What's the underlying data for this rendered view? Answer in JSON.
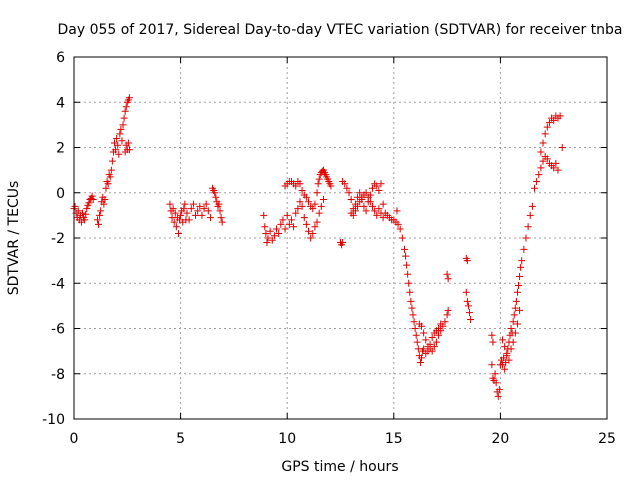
{
  "chart_data": {
    "type": "scatter",
    "title": "Day 055 of 2017, Sidereal Day-to-day VTEC variation (SDTVAR) for receiver tnba",
    "xlabel": "GPS time / hours",
    "ylabel": "SDTVAR / TECUs",
    "xlim": [
      0,
      25
    ],
    "ylim": [
      -10,
      6
    ],
    "xticks": [
      0,
      5,
      10,
      15,
      20,
      25
    ],
    "yticks": [
      -10,
      -8,
      -6,
      -4,
      -2,
      0,
      2,
      4,
      6
    ],
    "grid": true,
    "marker": "+",
    "marker_color": "#e00000",
    "series": [
      {
        "name": "SDTVAR",
        "points": [
          [
            0.0,
            -0.7
          ],
          [
            0.05,
            -0.6
          ],
          [
            0.1,
            -0.9
          ],
          [
            0.15,
            -1.1
          ],
          [
            0.2,
            -0.8
          ],
          [
            0.25,
            -1.2
          ],
          [
            0.3,
            -1.0
          ],
          [
            0.35,
            -1.3
          ],
          [
            0.4,
            -0.9
          ],
          [
            0.45,
            -1.1
          ],
          [
            0.5,
            -1.2
          ],
          [
            0.55,
            -0.95
          ],
          [
            0.6,
            -0.7
          ],
          [
            0.65,
            -0.55
          ],
          [
            0.7,
            -0.45
          ],
          [
            0.75,
            -0.3
          ],
          [
            0.8,
            -0.25
          ],
          [
            0.85,
            -0.15
          ],
          [
            0.9,
            -0.3
          ],
          [
            1.1,
            -1.2
          ],
          [
            1.15,
            -1.4
          ],
          [
            1.2,
            -1.0
          ],
          [
            1.25,
            -0.8
          ],
          [
            1.3,
            -0.4
          ],
          [
            1.35,
            -0.2
          ],
          [
            1.4,
            -0.5
          ],
          [
            1.45,
            -0.3
          ],
          [
            1.5,
            0.2
          ],
          [
            1.55,
            0.5
          ],
          [
            1.6,
            0.4
          ],
          [
            1.65,
            0.8
          ],
          [
            1.7,
            0.7
          ],
          [
            1.75,
            1.0
          ],
          [
            1.8,
            1.4
          ],
          [
            1.85,
            1.8
          ],
          [
            1.9,
            2.2
          ],
          [
            1.95,
            1.9
          ],
          [
            2.0,
            2.4
          ],
          [
            2.05,
            2.1
          ],
          [
            2.1,
            1.7
          ],
          [
            2.15,
            2.6
          ],
          [
            2.2,
            2.8
          ],
          [
            2.25,
            2.3
          ],
          [
            2.3,
            3.0
          ],
          [
            2.35,
            3.3
          ],
          [
            2.4,
            3.6
          ],
          [
            2.45,
            3.8
          ],
          [
            2.5,
            4.0
          ],
          [
            2.55,
            4.1
          ],
          [
            2.6,
            4.2
          ],
          [
            2.4,
            1.8
          ],
          [
            2.45,
            2.1
          ],
          [
            2.5,
            1.9
          ],
          [
            2.55,
            2.2
          ],
          [
            2.6,
            1.9
          ],
          [
            4.5,
            -0.5
          ],
          [
            4.55,
            -0.8
          ],
          [
            4.6,
            -1.1
          ],
          [
            4.65,
            -0.7
          ],
          [
            4.7,
            -1.3
          ],
          [
            4.75,
            -0.9
          ],
          [
            4.8,
            -1.5
          ],
          [
            4.85,
            -1.1
          ],
          [
            4.9,
            -1.8
          ],
          [
            4.95,
            -1.2
          ],
          [
            5.0,
            -1.0
          ],
          [
            5.05,
            -0.8
          ],
          [
            5.1,
            -1.3
          ],
          [
            5.15,
            -0.7
          ],
          [
            5.2,
            -0.5
          ],
          [
            5.25,
            -1.2
          ],
          [
            5.3,
            -0.9
          ],
          [
            5.4,
            -1.2
          ],
          [
            5.5,
            -0.7
          ],
          [
            5.6,
            -0.5
          ],
          [
            5.7,
            -1.0
          ],
          [
            5.8,
            -0.8
          ],
          [
            5.9,
            -0.6
          ],
          [
            6.0,
            -1.0
          ],
          [
            6.1,
            -0.7
          ],
          [
            6.2,
            -0.5
          ],
          [
            6.3,
            -0.8
          ],
          [
            6.4,
            -1.1
          ],
          [
            6.5,
            0.2
          ],
          [
            6.55,
            0.1
          ],
          [
            6.6,
            0.0
          ],
          [
            6.65,
            -0.2
          ],
          [
            6.7,
            -0.4
          ],
          [
            6.75,
            -0.6
          ],
          [
            6.8,
            -0.5
          ],
          [
            6.85,
            -0.8
          ],
          [
            6.9,
            -1.1
          ],
          [
            6.95,
            -1.3
          ],
          [
            8.9,
            -1.0
          ],
          [
            8.95,
            -1.5
          ],
          [
            9.0,
            -1.8
          ],
          [
            9.05,
            -2.2
          ],
          [
            9.1,
            -2.0
          ],
          [
            9.2,
            -1.7
          ],
          [
            9.3,
            -2.1
          ],
          [
            9.4,
            -1.9
          ],
          [
            9.5,
            -1.6
          ],
          [
            9.6,
            -1.8
          ],
          [
            9.7,
            -1.4
          ],
          [
            9.8,
            -1.2
          ],
          [
            9.9,
            -1.6
          ],
          [
            10.0,
            -1.0
          ],
          [
            10.1,
            -1.4
          ],
          [
            10.2,
            -1.2
          ],
          [
            10.3,
            -1.5
          ],
          [
            10.4,
            -0.9
          ],
          [
            10.5,
            -0.7
          ],
          [
            10.6,
            -0.4
          ],
          [
            10.7,
            -0.6
          ],
          [
            10.8,
            -1.1
          ],
          [
            10.9,
            -1.4
          ],
          [
            11.0,
            -1.7
          ],
          [
            11.1,
            -2.0
          ],
          [
            11.2,
            -1.8
          ],
          [
            11.3,
            -1.5
          ],
          [
            11.4,
            -1.3
          ],
          [
            11.5,
            -0.9
          ],
          [
            11.6,
            -0.6
          ],
          [
            11.7,
            -0.3
          ],
          [
            9.9,
            0.3
          ],
          [
            10.0,
            0.4
          ],
          [
            10.1,
            0.5
          ],
          [
            10.2,
            0.5
          ],
          [
            10.3,
            0.4
          ],
          [
            10.4,
            0.3
          ],
          [
            10.5,
            0.5
          ],
          [
            10.6,
            0.4
          ],
          [
            10.7,
            0.1
          ],
          [
            10.8,
            -0.1
          ],
          [
            10.9,
            -0.2
          ],
          [
            11.0,
            -0.4
          ],
          [
            11.1,
            -0.6
          ],
          [
            11.2,
            -0.7
          ],
          [
            11.3,
            -0.5
          ],
          [
            11.4,
            0.0
          ],
          [
            11.45,
            0.4
          ],
          [
            11.5,
            0.6
          ],
          [
            11.55,
            0.8
          ],
          [
            11.6,
            0.9
          ],
          [
            11.65,
            0.95
          ],
          [
            11.7,
            1.0
          ],
          [
            11.75,
            0.9
          ],
          [
            11.8,
            0.8
          ],
          [
            11.85,
            0.7
          ],
          [
            11.9,
            0.6
          ],
          [
            11.95,
            0.5
          ],
          [
            12.0,
            0.4
          ],
          [
            12.05,
            0.3
          ],
          [
            12.5,
            -2.2
          ],
          [
            12.55,
            -2.3
          ],
          [
            12.6,
            -2.2
          ],
          [
            12.6,
            0.5
          ],
          [
            12.7,
            0.4
          ],
          [
            12.8,
            0.2
          ],
          [
            12.9,
            0.0
          ],
          [
            13.0,
            -0.3
          ],
          [
            13.1,
            -0.7
          ],
          [
            13.2,
            -0.5
          ],
          [
            13.3,
            -0.2
          ],
          [
            13.4,
            0.0
          ],
          [
            13.5,
            -0.3
          ],
          [
            13.6,
            -0.6
          ],
          [
            13.7,
            -0.8
          ],
          [
            13.8,
            -0.4
          ],
          [
            13.9,
            -0.1
          ],
          [
            14.0,
            0.2
          ],
          [
            14.1,
            0.4
          ],
          [
            14.2,
            0.3
          ],
          [
            14.3,
            0.1
          ],
          [
            14.4,
            0.4
          ],
          [
            14.5,
            -0.5
          ],
          [
            13.0,
            -0.9
          ],
          [
            13.1,
            -1.0
          ],
          [
            13.2,
            -0.8
          ],
          [
            13.3,
            -0.6
          ],
          [
            13.4,
            -0.4
          ],
          [
            13.5,
            -0.2
          ],
          [
            13.6,
            -0.1
          ],
          [
            13.7,
            0.0
          ],
          [
            13.8,
            -0.2
          ],
          [
            13.9,
            -0.4
          ],
          [
            14.0,
            -0.6
          ],
          [
            14.1,
            -0.8
          ],
          [
            14.2,
            -1.0
          ],
          [
            14.3,
            -0.7
          ],
          [
            14.4,
            -0.9
          ],
          [
            14.5,
            -1.1
          ],
          [
            14.6,
            -0.9
          ],
          [
            14.7,
            -1.0
          ],
          [
            14.8,
            -1.1
          ],
          [
            14.9,
            -1.2
          ],
          [
            15.0,
            -1.2
          ],
          [
            15.1,
            -1.3
          ],
          [
            15.15,
            -0.8
          ],
          [
            15.2,
            -1.4
          ],
          [
            15.3,
            -1.6
          ],
          [
            15.4,
            -2.0
          ],
          [
            15.5,
            -2.5
          ],
          [
            15.55,
            -2.8
          ],
          [
            15.6,
            -3.2
          ],
          [
            15.65,
            -3.6
          ],
          [
            15.7,
            -4.0
          ],
          [
            15.75,
            -4.4
          ],
          [
            15.8,
            -4.8
          ],
          [
            15.85,
            -5.1
          ],
          [
            15.9,
            -5.4
          ],
          [
            15.95,
            -5.7
          ],
          [
            16.0,
            -6.0
          ],
          [
            16.05,
            -6.3
          ],
          [
            16.1,
            -6.6
          ],
          [
            16.15,
            -6.9
          ],
          [
            16.2,
            -7.2
          ],
          [
            16.25,
            -7.5
          ],
          [
            16.3,
            -7.3
          ],
          [
            16.35,
            -7.0
          ],
          [
            16.2,
            -5.8
          ],
          [
            16.3,
            -5.9
          ],
          [
            16.4,
            -6.2
          ],
          [
            16.5,
            -6.5
          ],
          [
            16.6,
            -6.8
          ],
          [
            16.7,
            -6.9
          ],
          [
            16.8,
            -7.0
          ],
          [
            16.9,
            -6.8
          ],
          [
            17.0,
            -6.6
          ],
          [
            17.1,
            -6.3
          ],
          [
            17.2,
            -6.1
          ],
          [
            17.3,
            -5.9
          ],
          [
            17.4,
            -5.7
          ],
          [
            17.5,
            -5.4
          ],
          [
            17.55,
            -5.2
          ],
          [
            16.4,
            -6.9
          ],
          [
            16.5,
            -7.1
          ],
          [
            16.6,
            -7.0
          ],
          [
            16.7,
            -6.7
          ],
          [
            16.8,
            -6.4
          ],
          [
            16.9,
            -6.2
          ],
          [
            17.0,
            -6.1
          ],
          [
            17.1,
            -6.0
          ],
          [
            17.2,
            -5.8
          ],
          [
            17.5,
            -3.6
          ],
          [
            17.55,
            -3.8
          ],
          [
            18.4,
            -4.4
          ],
          [
            18.45,
            -4.8
          ],
          [
            18.5,
            -5.0
          ],
          [
            18.55,
            -5.3
          ],
          [
            18.6,
            -5.6
          ],
          [
            18.4,
            -2.9
          ],
          [
            18.45,
            -3.0
          ],
          [
            19.6,
            -6.3
          ],
          [
            19.65,
            -6.6
          ],
          [
            19.6,
            -7.6
          ],
          [
            19.65,
            -8.2
          ],
          [
            19.7,
            -8.3
          ],
          [
            19.75,
            -8.0
          ],
          [
            19.8,
            -8.4
          ],
          [
            19.85,
            -8.8
          ],
          [
            19.9,
            -9.0
          ],
          [
            19.95,
            -8.7
          ],
          [
            20.0,
            -7.6
          ],
          [
            20.05,
            -7.4
          ],
          [
            20.1,
            -7.6
          ],
          [
            20.15,
            -7.3
          ],
          [
            20.2,
            -7.8
          ],
          [
            20.25,
            -7.5
          ],
          [
            20.3,
            -7.2
          ],
          [
            20.35,
            -6.9
          ],
          [
            20.4,
            -6.6
          ],
          [
            20.45,
            -6.3
          ],
          [
            20.5,
            -6.0
          ],
          [
            20.55,
            -6.2
          ],
          [
            20.6,
            -5.7
          ],
          [
            20.65,
            -5.4
          ],
          [
            20.7,
            -5.1
          ],
          [
            20.75,
            -4.8
          ],
          [
            20.8,
            -4.4
          ],
          [
            20.85,
            -4.1
          ],
          [
            20.9,
            -3.7
          ],
          [
            20.95,
            -3.3
          ],
          [
            21.0,
            -3.0
          ],
          [
            21.1,
            -2.5
          ],
          [
            21.2,
            -2.0
          ],
          [
            21.3,
            -1.5
          ],
          [
            21.4,
            -1.0
          ],
          [
            21.5,
            -0.6
          ],
          [
            20.1,
            -6.5
          ],
          [
            20.2,
            -6.8
          ],
          [
            20.3,
            -7.1
          ],
          [
            20.4,
            -7.4
          ],
          [
            20.5,
            -6.9
          ],
          [
            20.6,
            -6.6
          ],
          [
            20.7,
            -6.2
          ],
          [
            20.8,
            -5.8
          ],
          [
            20.9,
            -5.2
          ],
          [
            21.6,
            0.2
          ],
          [
            21.7,
            0.5
          ],
          [
            21.8,
            0.8
          ],
          [
            21.9,
            1.1
          ],
          [
            22.0,
            1.4
          ],
          [
            22.1,
            1.6
          ],
          [
            22.2,
            1.5
          ],
          [
            22.3,
            1.3
          ],
          [
            22.4,
            1.2
          ],
          [
            22.5,
            1.1
          ],
          [
            22.6,
            1.3
          ],
          [
            22.7,
            1.0
          ],
          [
            21.9,
            1.8
          ],
          [
            22.0,
            2.2
          ],
          [
            22.1,
            2.6
          ],
          [
            22.2,
            2.9
          ],
          [
            22.3,
            3.1
          ],
          [
            22.4,
            3.3
          ],
          [
            22.5,
            3.2
          ],
          [
            22.6,
            3.4
          ],
          [
            22.7,
            3.3
          ],
          [
            22.8,
            3.4
          ],
          [
            22.9,
            2.0
          ]
        ]
      }
    ]
  }
}
